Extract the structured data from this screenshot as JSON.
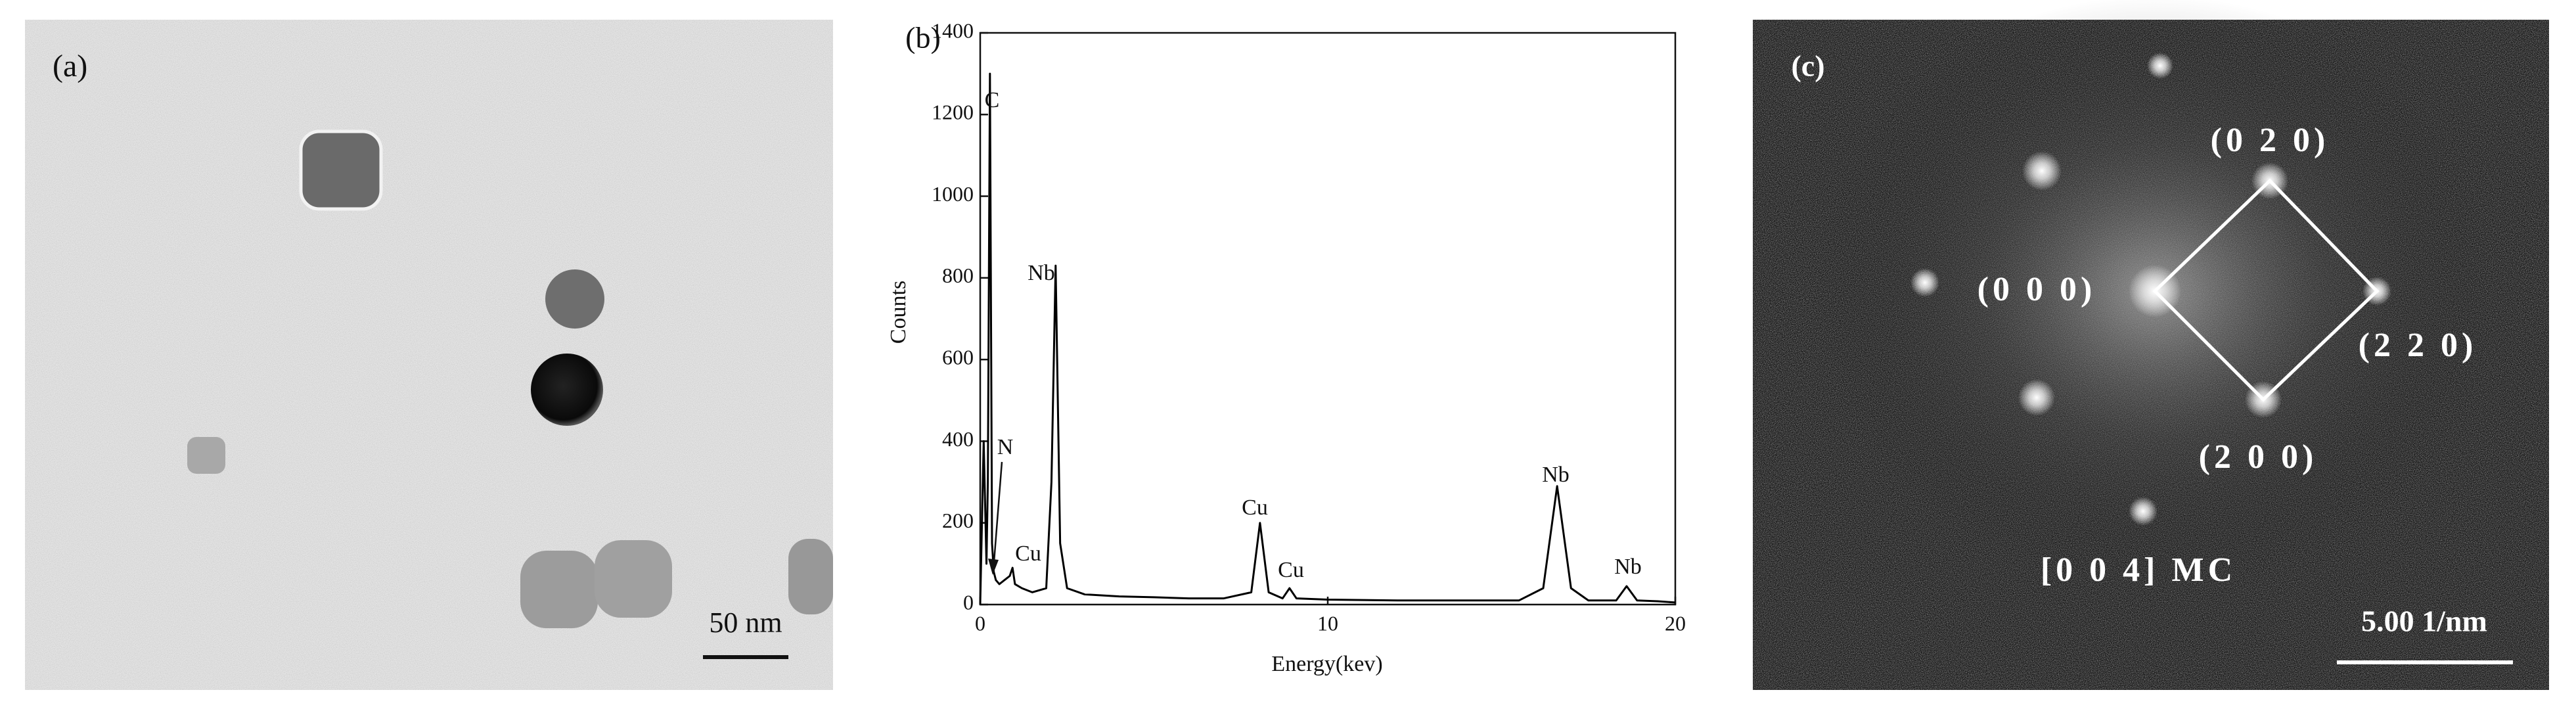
{
  "panel_a": {
    "label": "(a)",
    "scale_bar": "50 nm"
  },
  "panel_c": {
    "label": "(c)",
    "spots": [
      "(0 2 0)",
      "(0 0 0)",
      "(2 2 0)",
      "(2 0 0)"
    ],
    "zone_axis": "[0 0 4] MC",
    "scale_bar": "5.00 1/nm"
  },
  "chart_data": {
    "type": "line",
    "label": "(b)",
    "xlabel": "Energy(kev)",
    "ylabel": "Counts",
    "x": [
      0,
      0.1,
      0.18,
      0.22,
      0.28,
      0.34,
      0.39,
      0.45,
      0.55,
      0.7,
      0.85,
      0.93,
      1.0,
      1.2,
      1.5,
      1.9,
      2.05,
      2.17,
      2.3,
      2.5,
      3,
      4,
      5,
      6,
      7,
      7.8,
      8.05,
      8.3,
      8.7,
      8.9,
      9.1,
      10,
      12,
      14,
      15.5,
      16.2,
      16.6,
      17.0,
      17.5,
      18.3,
      18.6,
      18.9,
      19.5,
      20
    ],
    "values": [
      0,
      400,
      100,
      300,
      1300,
      150,
      80,
      60,
      50,
      60,
      70,
      90,
      50,
      40,
      30,
      40,
      300,
      830,
      150,
      40,
      25,
      20,
      18,
      15,
      15,
      30,
      200,
      30,
      15,
      40,
      15,
      12,
      10,
      10,
      10,
      40,
      290,
      40,
      10,
      10,
      45,
      10,
      8,
      5
    ],
    "color": "#000000",
    "xlim": [
      0,
      20
    ],
    "xticks": [
      0,
      10,
      20
    ],
    "ylim": [
      0,
      1400
    ],
    "yticks": [
      0,
      200,
      400,
      600,
      800,
      1000,
      1200,
      1400
    ],
    "annotations": [
      "C",
      "N",
      "Cu",
      "Nb",
      "Cu",
      "Cu",
      "Nb",
      "Nb"
    ]
  }
}
